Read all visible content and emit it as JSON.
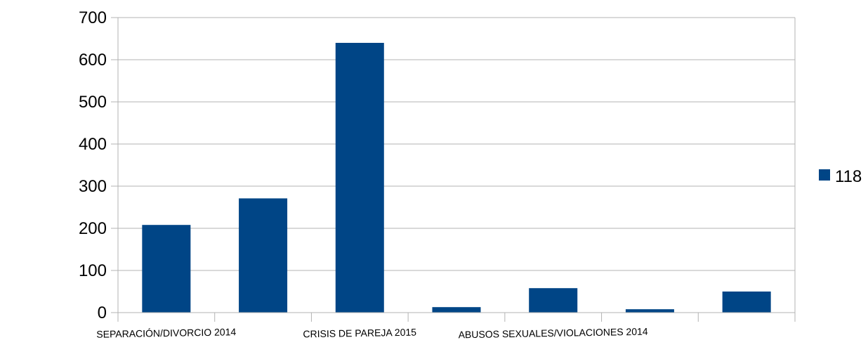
{
  "chart_data": {
    "type": "bar",
    "title": "",
    "xlabel": "",
    "ylabel": "",
    "categories": [
      "SEPARACIÓN/DIVORCIO 2014",
      "",
      "CRISIS DE PAREJA 2015",
      "",
      "ABUSOS SEXUALES/VIOLACIONES 2014",
      "",
      ""
    ],
    "series": [
      {
        "name": "118",
        "values": [
          208,
          271,
          640,
          13,
          58,
          8,
          50
        ],
        "color": "#004586"
      }
    ],
    "ylim": [
      0,
      700
    ],
    "yticks": [
      "0",
      "100",
      "200",
      "300",
      "400",
      "500",
      "600",
      "700"
    ],
    "grid": true,
    "legend_position": "right"
  }
}
